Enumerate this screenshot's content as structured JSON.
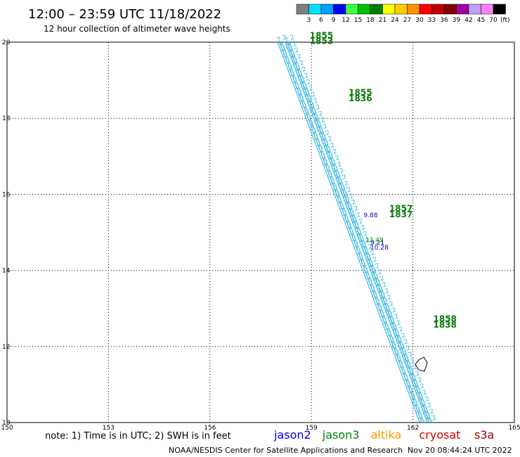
{
  "header": {
    "title": "12:00 – 23:59 UTC 11/18/2022",
    "subtitle": "12 hour collection of altimeter wave heights"
  },
  "colorbar": {
    "unit": "(ft)",
    "labels": [
      "3",
      "6",
      "9",
      "12",
      "15",
      "18",
      "21",
      "24",
      "27",
      "30",
      "33",
      "36",
      "39",
      "42",
      "45",
      "70"
    ],
    "colors": [
      "#808080",
      "#00e0ff",
      "#00a0ff",
      "#0000ff",
      "#40ff40",
      "#00c000",
      "#008000",
      "#ffff00",
      "#ffd000",
      "#ff9000",
      "#ff0000",
      "#c00000",
      "#800000",
      "#a000a0",
      "#c0a0ff",
      "#ff80ff",
      "#000000"
    ]
  },
  "map": {
    "lon_range": [
      150,
      165
    ],
    "lat_range": [
      10,
      20
    ],
    "lon_ticks": [
      "150",
      "153",
      "156",
      "159",
      "162",
      "165"
    ],
    "lat_ticks": [
      "10",
      "12",
      "14",
      "16",
      "18",
      "20"
    ],
    "grid": "dotted",
    "track_start": {
      "lon": 158.0,
      "lat": 20.0
    },
    "track_end": {
      "lon": 162.2,
      "lat": 10.0
    },
    "track_color": "#33b5e0",
    "time_labels": [
      {
        "text": "1855",
        "lon": 158.95,
        "lat": 20.1
      },
      {
        "text": "1853",
        "lon": 158.95,
        "lat": 19.95
      },
      {
        "text": "1855",
        "lon": 160.1,
        "lat": 18.6
      },
      {
        "text": "1836",
        "lon": 160.1,
        "lat": 18.45
      },
      {
        "text": "1857",
        "lon": 161.3,
        "lat": 15.55
      },
      {
        "text": "1837",
        "lon": 161.3,
        "lat": 15.4
      },
      {
        "text": "1858",
        "lon": 162.6,
        "lat": 12.65
      },
      {
        "text": "1838",
        "lon": 162.6,
        "lat": 12.5
      }
    ],
    "highlight_values": [
      {
        "text": "9.88",
        "lon": 160.75,
        "lat": 15.4,
        "color": "#0000cc"
      },
      {
        "text": "13.49",
        "lon": 160.8,
        "lat": 14.75,
        "color": "#00a000"
      },
      {
        "text": "9.21",
        "lon": 160.95,
        "lat": 14.68,
        "color": "#000080"
      },
      {
        "text": "10.28",
        "lon": 160.95,
        "lat": 14.55,
        "color": "#0000cc"
      }
    ]
  },
  "note": "note: 1) Time is in UTC; 2) SWH is in feet",
  "satellites": [
    {
      "name": "jason2",
      "color": "#0000ff"
    },
    {
      "name": "jason3",
      "color": "#008000"
    },
    {
      "name": "altika",
      "color": "#ff9900"
    },
    {
      "name": "cryosat",
      "color": "#dd0000"
    },
    {
      "name": "s3a",
      "color": "#990000"
    }
  ],
  "footer": {
    "credit": "NOAA/NESDIS Center for Satellite Applications and Research",
    "timestamp": "Nov 20 08:44:24 UTC 2022"
  }
}
